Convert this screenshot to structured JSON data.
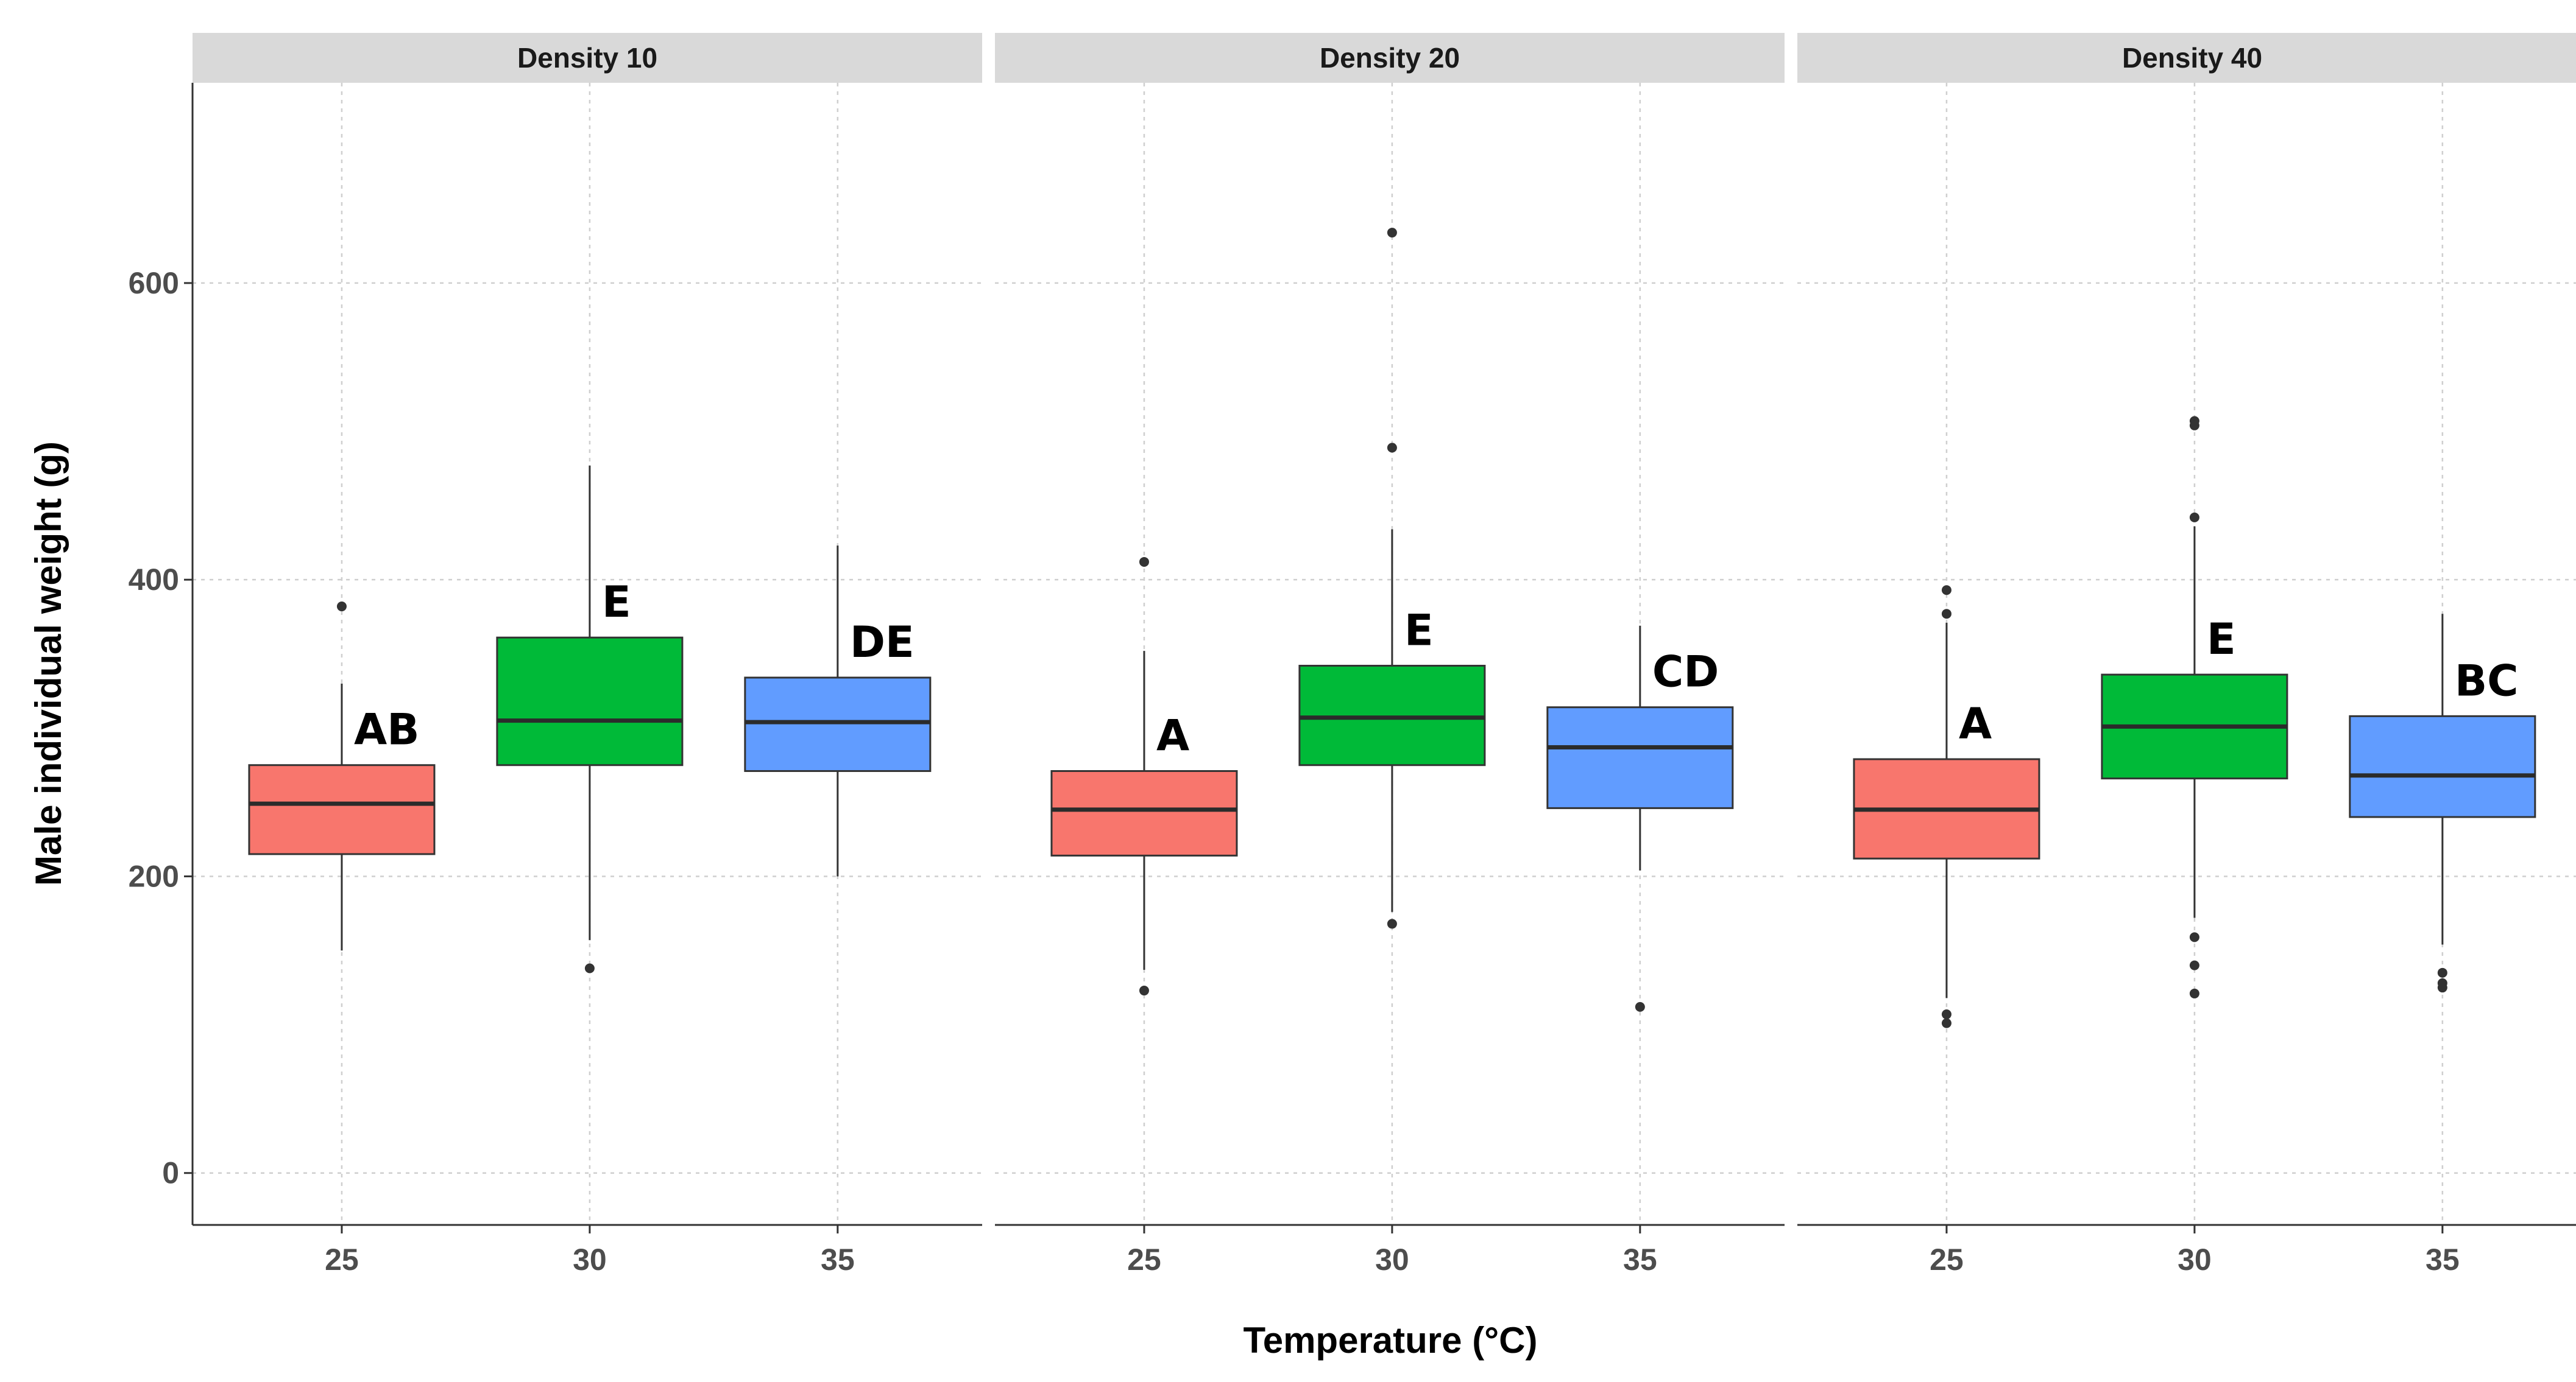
{
  "chart_data": {
    "type": "box",
    "ylabel": "Male individual weight (g)",
    "xlabel": "Temperature (°C)",
    "ylim": [
      -35,
      735
    ],
    "yticks": [
      0,
      200,
      400,
      600
    ],
    "grid": true,
    "colors": {
      "25": "#F8766D",
      "30": "#00BA38",
      "35": "#619CFF"
    },
    "facets": [
      {
        "label": "Density 10",
        "groups": [
          {
            "x": "25",
            "lower_whisker": 150,
            "q1": 215,
            "median": 249,
            "q3": 275,
            "upper_whisker": 330,
            "outliers": [
              382
            ],
            "letter": "AB"
          },
          {
            "x": "30",
            "lower_whisker": 157,
            "q1": 275,
            "median": 305,
            "q3": 361,
            "upper_whisker": 477,
            "outliers": [
              138
            ],
            "letter": "E"
          },
          {
            "x": "35",
            "lower_whisker": 200,
            "q1": 271,
            "median": 304,
            "q3": 334,
            "upper_whisker": 423,
            "outliers": [],
            "letter": "DE"
          }
        ]
      },
      {
        "label": "Density 20",
        "groups": [
          {
            "x": "25",
            "lower_whisker": 137,
            "q1": 214,
            "median": 245,
            "q3": 271,
            "upper_whisker": 352,
            "outliers": [
              412,
              123
            ],
            "letter": "A"
          },
          {
            "x": "30",
            "lower_whisker": 176,
            "q1": 275,
            "median": 307,
            "q3": 342,
            "upper_whisker": 434,
            "outliers": [
              634,
              489,
              168
            ],
            "letter": "E"
          },
          {
            "x": "35",
            "lower_whisker": 204,
            "q1": 246,
            "median": 287,
            "q3": 314,
            "upper_whisker": 369,
            "outliers": [
              112
            ],
            "letter": "CD"
          }
        ]
      },
      {
        "label": "Density 40",
        "groups": [
          {
            "x": "25",
            "lower_whisker": 118,
            "q1": 212,
            "median": 245,
            "q3": 279,
            "upper_whisker": 371,
            "outliers": [
              393,
              377,
              107,
              101
            ],
            "letter": "A"
          },
          {
            "x": "30",
            "lower_whisker": 172,
            "q1": 266,
            "median": 301,
            "q3": 336,
            "upper_whisker": 436,
            "outliers": [
              507,
              504,
              442,
              159,
              140,
              121
            ],
            "letter": "E"
          },
          {
            "x": "35",
            "lower_whisker": 154,
            "q1": 240,
            "median": 268,
            "q3": 308,
            "upper_whisker": 377,
            "outliers": [
              135,
              128,
              125
            ],
            "letter": "BC"
          }
        ]
      }
    ]
  }
}
